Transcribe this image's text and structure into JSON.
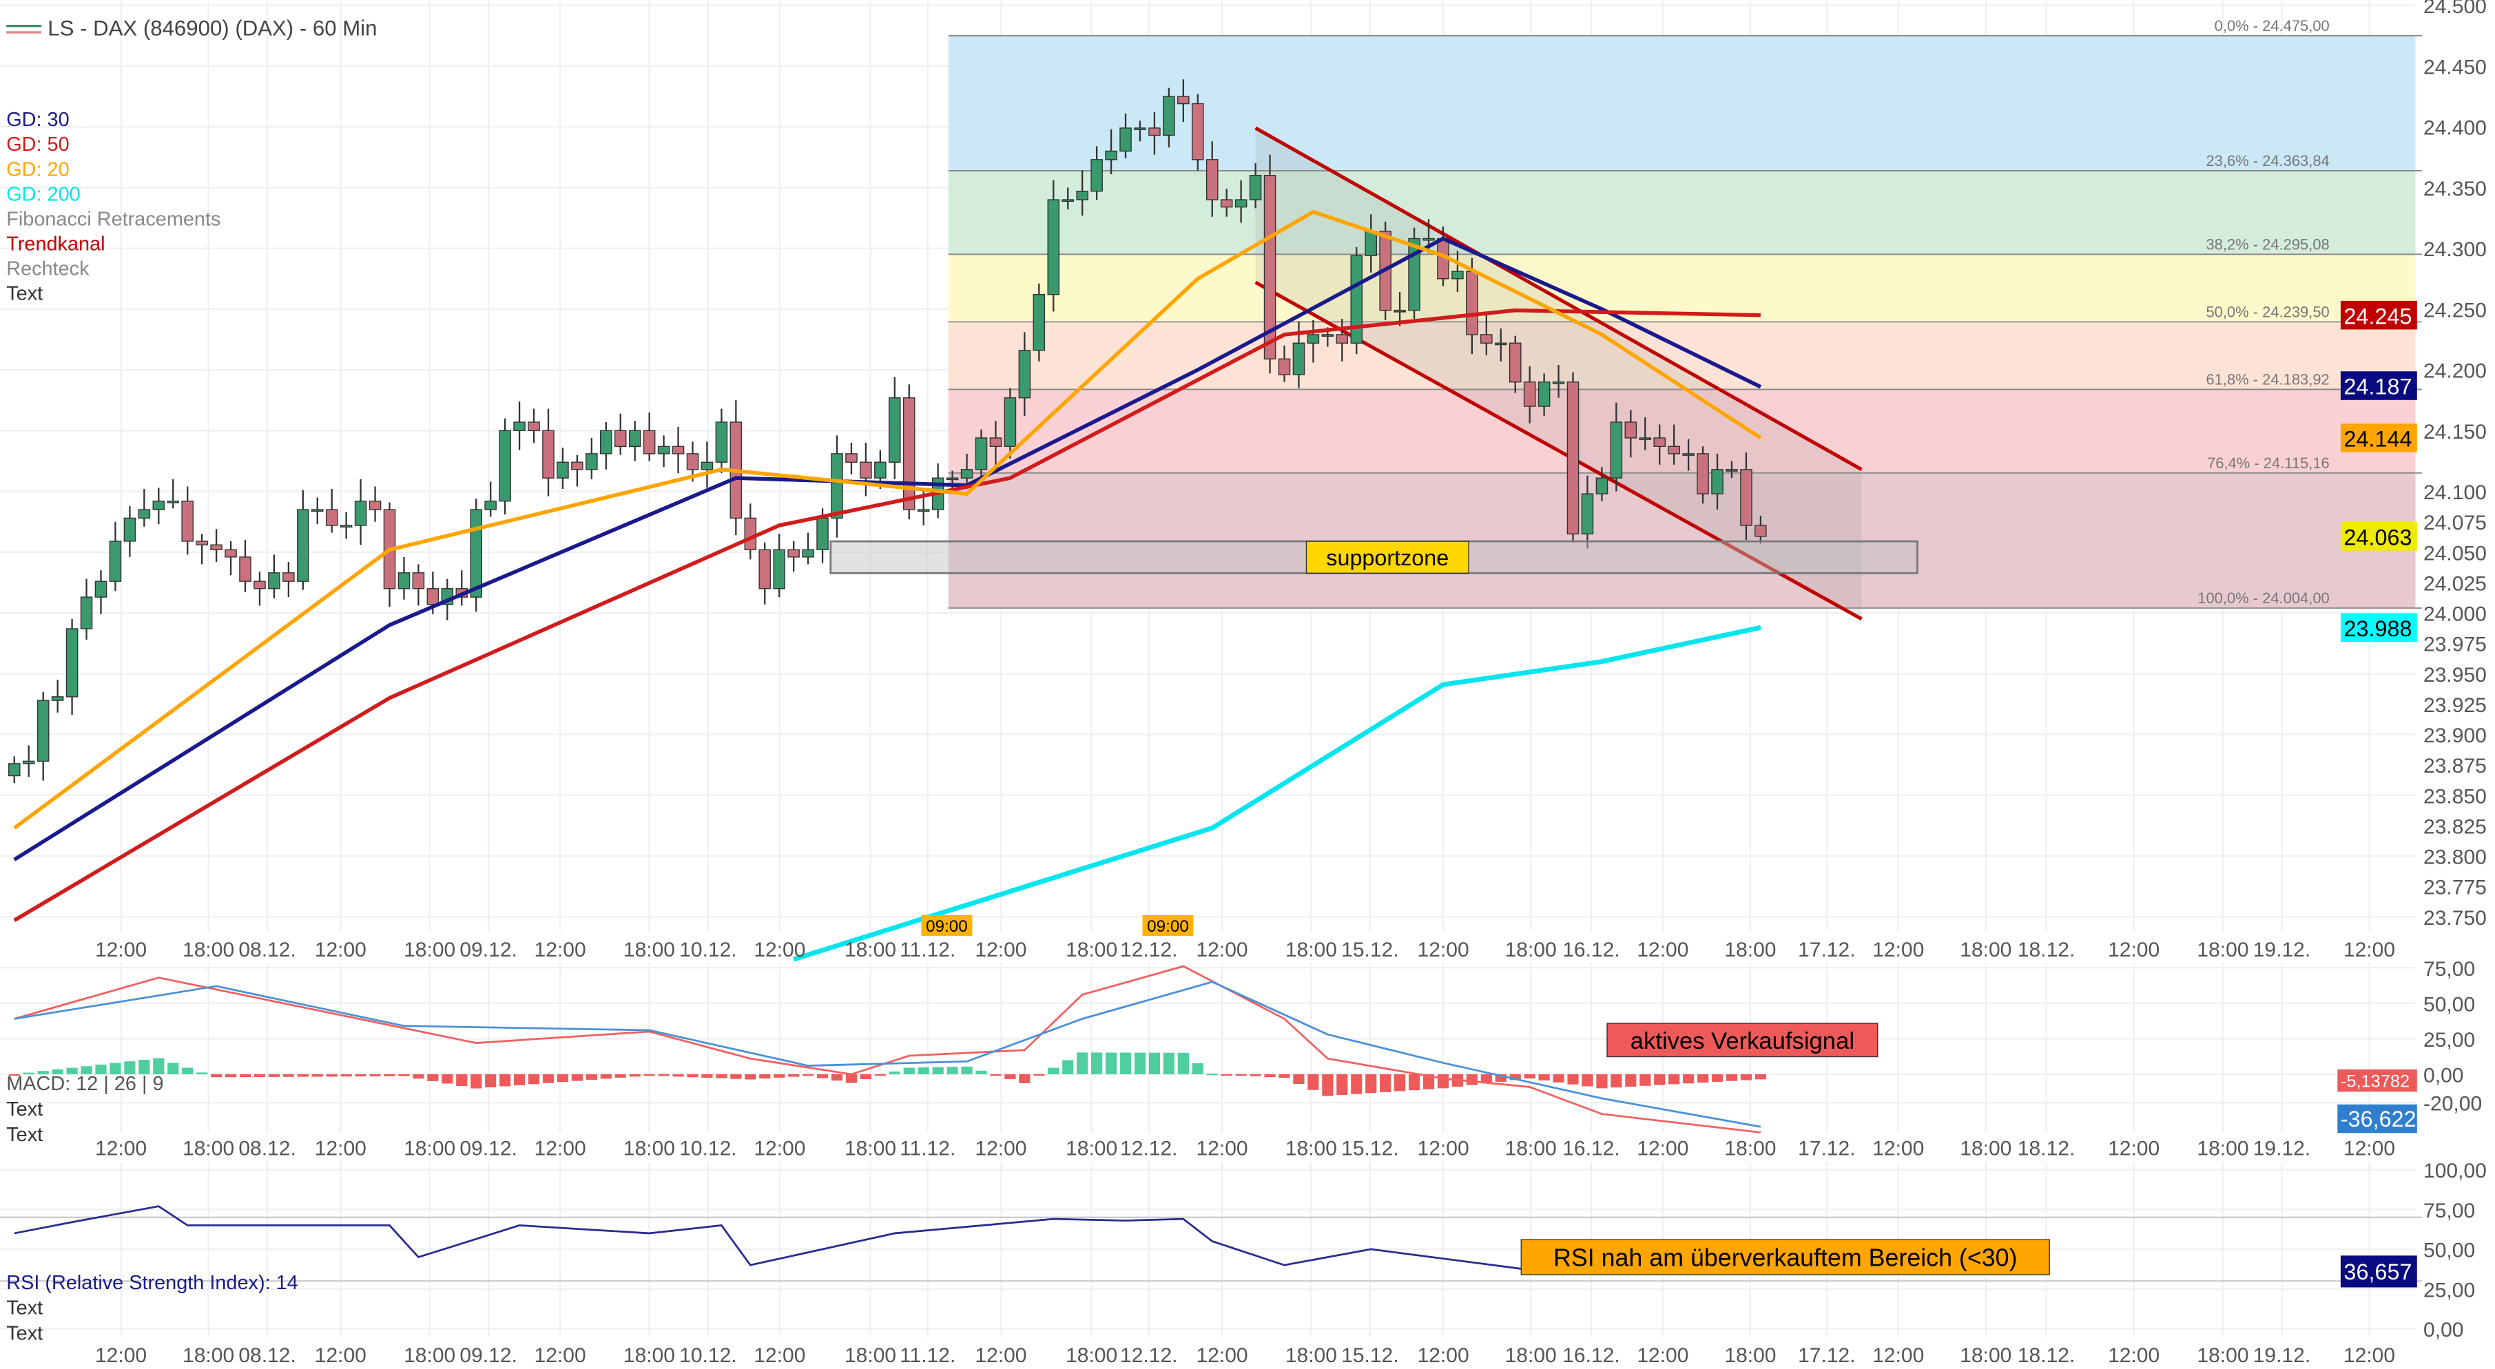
{
  "header": {
    "title": "LS - DAX (846900) (DAX) - 60 Min"
  },
  "legend": [
    {
      "label": "GD: 30",
      "color": "#1a1a8c"
    },
    {
      "label": "GD: 50",
      "color": "#d01c1c"
    },
    {
      "label": "GD: 20",
      "color": "#ffa500"
    },
    {
      "label": "GD: 200",
      "color": "#00e5ee"
    },
    {
      "label": "Fibonacci Retracements",
      "color": "#888888"
    },
    {
      "label": "Trendkanal",
      "color": "#c00000"
    },
    {
      "label": "Rechteck",
      "color": "#888888"
    },
    {
      "label": "Text",
      "color": "#333333"
    }
  ],
  "price_axis": [
    "24.500",
    "24.450",
    "24.400",
    "24.350",
    "24.300",
    "24.250",
    "24.200",
    "24.150",
    "24.100",
    "24.075",
    "24.050",
    "24.025",
    "24.000",
    "23.975",
    "23.950",
    "23.925",
    "23.900",
    "23.875",
    "23.850",
    "23.825",
    "23.800",
    "23.775",
    "23.750"
  ],
  "price_badges": [
    {
      "label": "24.245",
      "value": 24245,
      "bg": "#c00000",
      "fg": "#ffffff"
    },
    {
      "label": "24.187",
      "value": 24187,
      "bg": "#0a0a80",
      "fg": "#ffffff"
    },
    {
      "label": "24.144",
      "value": 24144,
      "bg": "#ffa500",
      "fg": "#000000"
    },
    {
      "label": "24.063",
      "value": 24063,
      "bg": "#eeea00",
      "fg": "#000000"
    },
    {
      "label": "23.988",
      "value": 23988,
      "bg": "#00ffff",
      "fg": "#000000"
    }
  ],
  "time_axis": [
    "12:00",
    "18:00",
    "08.12.",
    "12:00",
    "18:00",
    "09.12.",
    "12:00",
    "18:00",
    "10.12.",
    "12:00",
    "18:00",
    "11.12.",
    "12:00",
    "18:00",
    "12.12.",
    "12:00",
    "18:00",
    "15.12.",
    "12:00",
    "18:00",
    "16.12.",
    "12:00",
    "18:00",
    "17.12.",
    "12:00",
    "18:00",
    "18.12.",
    "12:00",
    "18:00",
    "19.12.",
    "12:00"
  ],
  "time_badges": [
    "09:00",
    "09:00"
  ],
  "fibonacci": [
    {
      "label": "0,0% - 24.475,00",
      "value": 24475.0
    },
    {
      "label": "23,6% - 24.363,84",
      "value": 24363.84
    },
    {
      "label": "38,2% - 24.295,08",
      "value": 24295.08
    },
    {
      "label": "50,0% - 24.239,50",
      "value": 24239.5
    },
    {
      "label": "61,8% - 24.183,92",
      "value": 24183.92
    },
    {
      "label": "76,4% - 24.115,16",
      "value": 24115.16
    },
    {
      "label": "100,0% - 24.004,00",
      "value": 24004.0
    }
  ],
  "fib_colors": [
    "#cbe8f6",
    "#d3ecdc",
    "#fdf9cb",
    "#fde3d5",
    "#f9d0d3",
    "#e7c9cf"
  ],
  "supportzone": {
    "label": "supportzone",
    "top": 24059,
    "bottom": 24032
  },
  "chart_data": {
    "type": "candlestick",
    "title": "LS - DAX (846900) (DAX) - 60 Min",
    "closes": [
      23876,
      23878,
      23928,
      23931,
      23987,
      24013,
      24026,
      24059,
      24078,
      24085,
      24092,
      24092,
      24059,
      24056,
      24052,
      24046,
      24026,
      24020,
      24033,
      24026,
      24085,
      24085,
      24072,
      24072,
      24092,
      24085,
      24020,
      24033,
      24020,
      24007,
      24020,
      24013,
      24085,
      24092,
      24150,
      24157,
      24150,
      24111,
      24124,
      24118,
      24131,
      24150,
      24137,
      24150,
      24131,
      24137,
      24131,
      24118,
      24124,
      24157,
      24078,
      24052,
      24020,
      24052,
      24046,
      24052,
      24078,
      24131,
      24124,
      24111,
      24124,
      24177,
      24085,
      24085,
      24111,
      24111,
      24118,
      24144,
      24137,
      24177,
      24216,
      24262,
      24340,
      24340,
      24347,
      24373,
      24380,
      24399,
      24399,
      24393,
      24425,
      24419,
      24373,
      24340,
      24334,
      24340,
      24360,
      24209,
      24196,
      24222,
      24229,
      24229,
      24222,
      24294,
      24314,
      24249,
      24249,
      24308,
      24308,
      24275,
      24281,
      24229,
      24222,
      24222,
      24190,
      24170,
      24190,
      24190,
      24065,
      24098,
      24111,
      24157,
      24144,
      24144,
      24137,
      24131,
      24131,
      24098,
      24118,
      24118,
      24072,
      24063
    ],
    "moving_averages": [
      {
        "name": "GD: 30",
        "color": "#1a1a8c",
        "points": [
          [
            0,
            23797
          ],
          [
            26,
            23990
          ],
          [
            50,
            24111
          ],
          [
            66,
            24105
          ],
          [
            82,
            24200
          ],
          [
            99,
            24308
          ],
          [
            110,
            24250
          ],
          [
            121,
            24186
          ]
        ]
      },
      {
        "name": "GD: 50",
        "color": "#d01c1c",
        "points": [
          [
            0,
            23747
          ],
          [
            26,
            23930
          ],
          [
            53,
            24072
          ],
          [
            69,
            24111
          ],
          [
            88,
            24229
          ],
          [
            104,
            24249
          ],
          [
            121,
            24245
          ]
        ]
      },
      {
        "name": "GD: 20",
        "color": "#ffa500",
        "points": [
          [
            0,
            23823
          ],
          [
            26,
            24052
          ],
          [
            49,
            24118
          ],
          [
            66,
            24098
          ],
          [
            82,
            24275
          ],
          [
            90,
            24330
          ],
          [
            99,
            24294
          ],
          [
            110,
            24229
          ],
          [
            121,
            24144
          ]
        ]
      },
      {
        "name": "GD: 200",
        "color": "#00e5ee",
        "points": [
          [
            54,
            23715
          ],
          [
            83,
            23823
          ],
          [
            99,
            23941
          ],
          [
            110,
            23960
          ],
          [
            121,
            23988
          ]
        ]
      }
    ],
    "trendkanal": {
      "upper": [
        [
          86,
          24399
        ],
        [
          128,
          24118
        ]
      ],
      "lower": [
        [
          86,
          24272
        ],
        [
          128,
          23995
        ]
      ]
    },
    "ylim": [
      23735,
      24504
    ]
  },
  "macd": {
    "label": "MACD: 12 | 26 | 9",
    "text_labels": [
      "Text",
      "Text"
    ],
    "axis": [
      "75,00",
      "50,00",
      "25,00",
      "0,00",
      "-20,00"
    ],
    "macd_badge": "-5,13782",
    "signal_badge": "-36,622",
    "annotation": "aktives Verkaufsignal",
    "macd_line": [
      [
        0,
        39
      ],
      [
        10,
        68
      ],
      [
        21,
        45
      ],
      [
        32,
        22
      ],
      [
        44,
        30
      ],
      [
        51,
        11
      ],
      [
        58,
        0
      ],
      [
        62,
        13
      ],
      [
        70,
        17
      ],
      [
        74,
        56
      ],
      [
        81,
        76
      ],
      [
        88,
        39
      ],
      [
        91,
        11
      ],
      [
        99,
        -3
      ],
      [
        105,
        -9
      ],
      [
        110,
        -28
      ],
      [
        121,
        -41
      ]
    ],
    "signal_line": [
      [
        0,
        39
      ],
      [
        14,
        62
      ],
      [
        27,
        34
      ],
      [
        44,
        31
      ],
      [
        55,
        6
      ],
      [
        66,
        9
      ],
      [
        74,
        39
      ],
      [
        83,
        65
      ],
      [
        91,
        28
      ],
      [
        99,
        8
      ],
      [
        110,
        -17
      ],
      [
        121,
        -37
      ]
    ],
    "macd_color": "#f06060",
    "signal_color": "#4a90d9"
  },
  "rsi": {
    "label": "RSI (Relative Strength Index): 14",
    "text_labels": [
      "Text",
      "Text"
    ],
    "axis": [
      "100,00",
      "75,00",
      "50,00",
      "25,00",
      "0,00"
    ],
    "badge": "36,657",
    "annotation": "RSI nah am überverkauftem Bereich (<30)",
    "line": [
      [
        0,
        60
      ],
      [
        4,
        67
      ],
      [
        10,
        77
      ],
      [
        12,
        65
      ],
      [
        26,
        65
      ],
      [
        28,
        45
      ],
      [
        35,
        65
      ],
      [
        44,
        60
      ],
      [
        49,
        65
      ],
      [
        51,
        40
      ],
      [
        61,
        60
      ],
      [
        72,
        69
      ],
      [
        77,
        68
      ],
      [
        81,
        69
      ],
      [
        83,
        55
      ],
      [
        88,
        40
      ],
      [
        94,
        50
      ],
      [
        105,
        37
      ],
      [
        110,
        35
      ],
      [
        121,
        37
      ]
    ]
  }
}
